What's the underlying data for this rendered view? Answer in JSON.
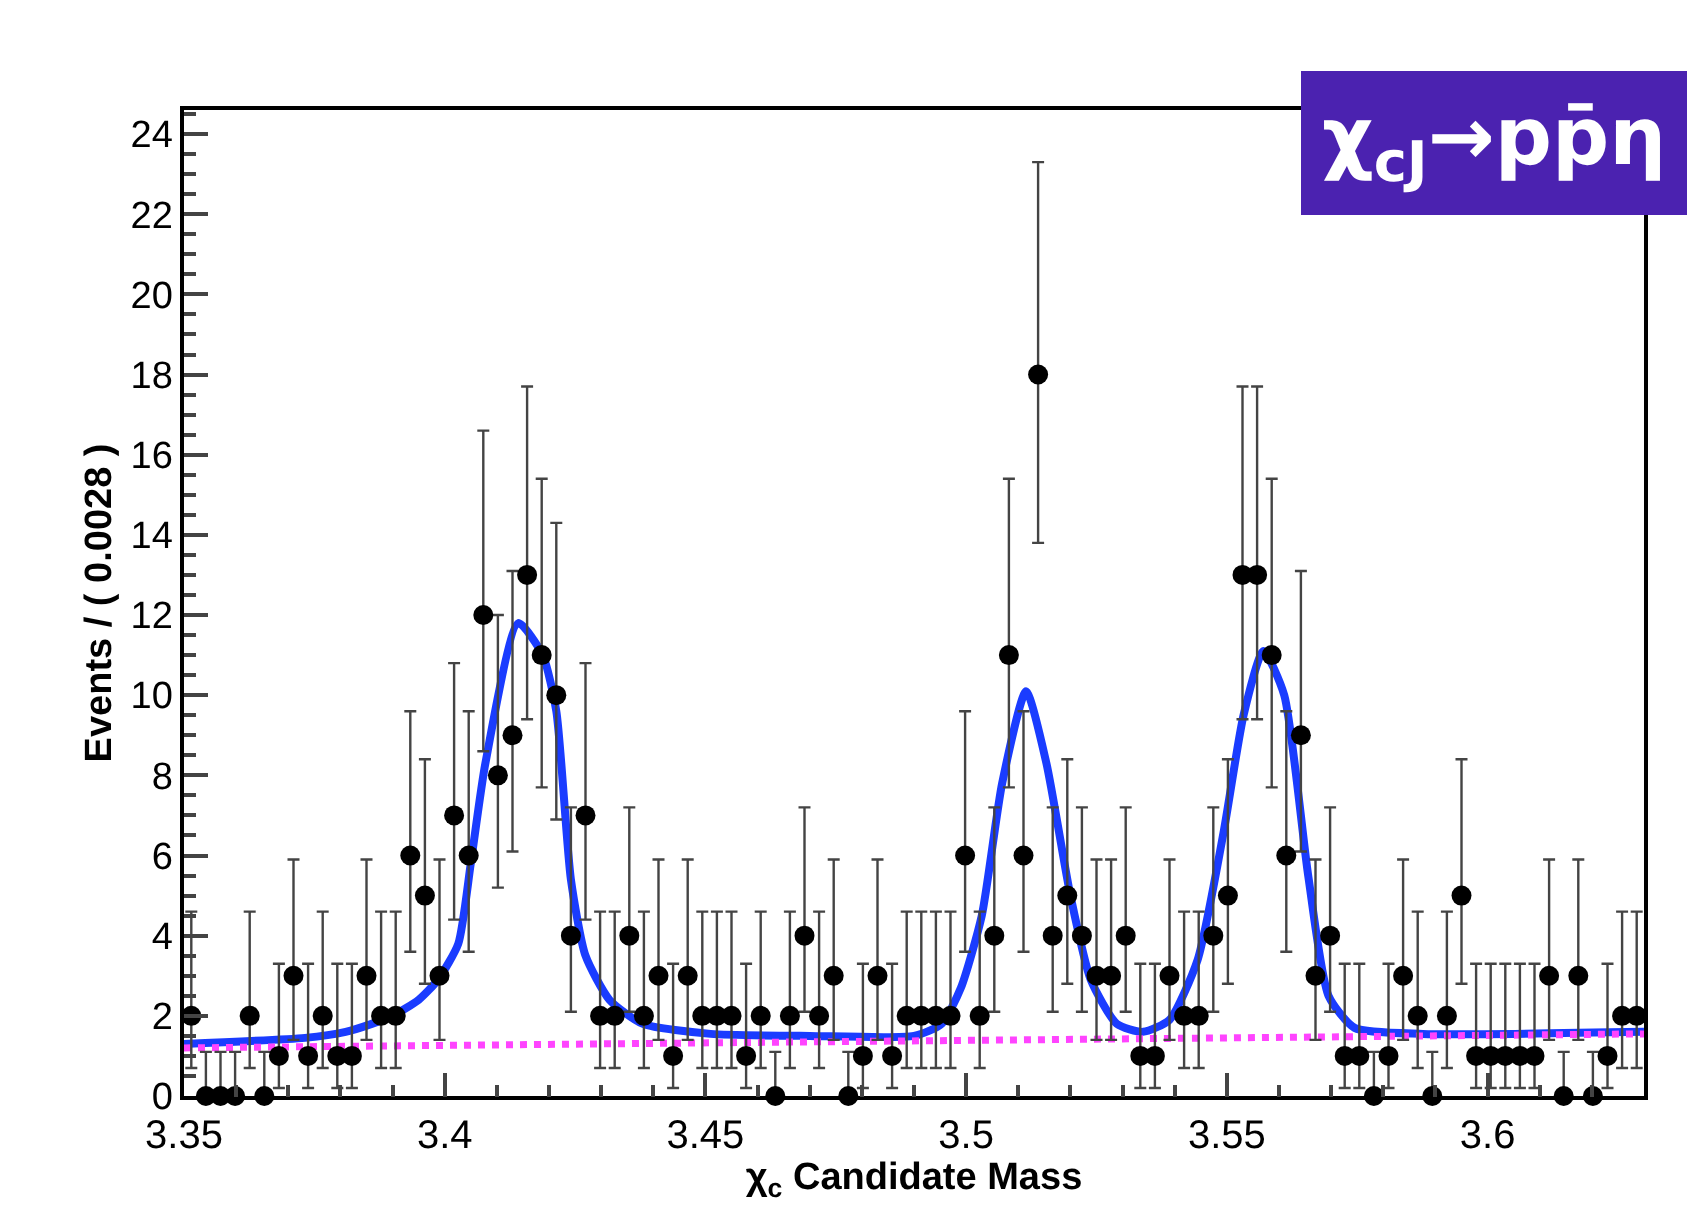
{
  "chart_data": {
    "type": "scatter",
    "xlabel": "χ$_{c}$ Candidate Mass",
    "ylabel": "Events / ( 0.0028 )",
    "annotations": [
      "χ$_{cJ}$→pp̄η"
    ],
    "xlim": [
      3.35,
      3.63
    ],
    "xticks": [
      3.35,
      3.4,
      3.45,
      3.5,
      3.55,
      3.6
    ],
    "ylim": [
      0,
      24.6
    ],
    "yticks": [
      0,
      2,
      4,
      6,
      8,
      10,
      12,
      14,
      16,
      18,
      20,
      22,
      24
    ],
    "series": [
      {
        "color": "#000000",
        "marker": "circle",
        "x": [
          3.3514,
          3.3542,
          3.357,
          3.3598,
          3.3626,
          3.3654,
          3.3682,
          3.371,
          3.3738,
          3.3766,
          3.3794,
          3.3822,
          3.385,
          3.3878,
          3.3906,
          3.3934,
          3.3962,
          3.399,
          3.4018,
          3.4046,
          3.4074,
          3.4102,
          3.413,
          3.4158,
          3.4186,
          3.4214,
          3.4242,
          3.427,
          3.4298,
          3.4326,
          3.4354,
          3.4382,
          3.441,
          3.4438,
          3.4466,
          3.4494,
          3.4522,
          3.455,
          3.4578,
          3.4606,
          3.4634,
          3.4662,
          3.469,
          3.4718,
          3.4746,
          3.4774,
          3.4802,
          3.483,
          3.4858,
          3.4886,
          3.4914,
          3.4942,
          3.497,
          3.4998,
          3.5026,
          3.5054,
          3.5082,
          3.511,
          3.5138,
          3.5166,
          3.5194,
          3.5222,
          3.525,
          3.5278,
          3.5306,
          3.5334,
          3.5362,
          3.539,
          3.5418,
          3.5446,
          3.5474,
          3.5502,
          3.553,
          3.5558,
          3.5586,
          3.5614,
          3.5642,
          3.567,
          3.5698,
          3.5726,
          3.5754,
          3.5782,
          3.581,
          3.5838,
          3.5866,
          3.5894,
          3.5922,
          3.595,
          3.5978,
          3.6006,
          3.6034,
          3.6062,
          3.609,
          3.6118,
          3.6146,
          3.6174,
          3.6202,
          3.623,
          3.6258,
          3.6286
        ],
        "values": [
          2,
          0,
          0,
          0,
          2,
          0,
          1,
          3,
          1,
          2,
          1,
          1,
          3,
          2,
          2,
          6,
          5,
          3,
          7,
          6,
          12,
          8,
          9,
          13,
          11,
          10,
          4,
          7,
          2,
          2,
          4,
          2,
          3,
          1,
          3,
          2,
          2,
          2,
          1,
          2,
          0,
          2,
          4,
          2,
          3,
          0,
          1,
          3,
          1,
          2,
          2,
          2,
          2,
          6,
          2,
          4,
          11,
          6,
          18,
          4,
          5,
          4,
          3,
          3,
          4,
          1,
          1,
          3,
          2,
          2,
          4,
          5,
          13,
          13,
          11,
          6,
          9,
          3,
          4,
          1,
          1,
          0,
          1,
          3,
          2,
          0,
          2,
          5,
          1,
          1,
          1,
          1,
          1,
          3,
          0,
          3,
          0,
          1,
          2,
          2
        ],
        "errors": [
          [
            0.7,
            4.6
          ],
          [
            0,
            1.1
          ],
          [
            0,
            1.1
          ],
          [
            0,
            1.1
          ],
          [
            0.7,
            4.6
          ],
          [
            0,
            1.1
          ],
          [
            0.2,
            3.3
          ],
          [
            1.4,
            5.9
          ],
          [
            0.2,
            3.3
          ],
          [
            0.7,
            4.6
          ],
          [
            0.2,
            3.3
          ],
          [
            0.2,
            3.3
          ],
          [
            1.4,
            5.9
          ],
          [
            0.7,
            4.6
          ],
          [
            0.7,
            4.6
          ],
          [
            3.6,
            9.6
          ],
          [
            2.8,
            8.4
          ],
          [
            1.4,
            5.9
          ],
          [
            4.4,
            10.8
          ],
          [
            3.6,
            9.6
          ],
          [
            8.6,
            16.6
          ],
          [
            5.2,
            12.0
          ],
          [
            6.1,
            13.1
          ],
          [
            9.4,
            17.7
          ],
          [
            7.7,
            15.4
          ],
          [
            6.9,
            14.3
          ],
          [
            2.1,
            7.2
          ],
          [
            4.4,
            10.8
          ],
          [
            0.7,
            4.6
          ],
          [
            0.7,
            4.6
          ],
          [
            2.1,
            7.2
          ],
          [
            0.7,
            4.6
          ],
          [
            1.4,
            5.9
          ],
          [
            0.2,
            3.3
          ],
          [
            1.4,
            5.9
          ],
          [
            0.7,
            4.6
          ],
          [
            0.7,
            4.6
          ],
          [
            0.7,
            4.6
          ],
          [
            0.2,
            3.3
          ],
          [
            0.7,
            4.6
          ],
          [
            0,
            1.1
          ],
          [
            0.7,
            4.6
          ],
          [
            2.1,
            7.2
          ],
          [
            0.7,
            4.6
          ],
          [
            1.4,
            5.9
          ],
          [
            0,
            1.1
          ],
          [
            0.2,
            3.3
          ],
          [
            1.4,
            5.9
          ],
          [
            0.2,
            3.3
          ],
          [
            0.7,
            4.6
          ],
          [
            0.7,
            4.6
          ],
          [
            0.7,
            4.6
          ],
          [
            0.7,
            4.6
          ],
          [
            3.6,
            9.6
          ],
          [
            0.7,
            4.6
          ],
          [
            2.1,
            7.2
          ],
          [
            7.7,
            15.4
          ],
          [
            3.6,
            9.6
          ],
          [
            13.8,
            23.3
          ],
          [
            2.1,
            7.2
          ],
          [
            2.8,
            8.4
          ],
          [
            2.1,
            7.2
          ],
          [
            1.4,
            5.9
          ],
          [
            1.4,
            5.9
          ],
          [
            2.1,
            7.2
          ],
          [
            0.2,
            3.3
          ],
          [
            0.2,
            3.3
          ],
          [
            1.4,
            5.9
          ],
          [
            0.7,
            4.6
          ],
          [
            0.7,
            4.6
          ],
          [
            2.1,
            7.2
          ],
          [
            2.8,
            8.4
          ],
          [
            9.4,
            17.7
          ],
          [
            9.4,
            17.7
          ],
          [
            7.7,
            15.4
          ],
          [
            3.6,
            9.6
          ],
          [
            6.1,
            13.1
          ],
          [
            1.4,
            5.9
          ],
          [
            2.1,
            7.2
          ],
          [
            0.2,
            3.3
          ],
          [
            0.2,
            3.3
          ],
          [
            0,
            1.1
          ],
          [
            0.2,
            3.3
          ],
          [
            1.4,
            5.9
          ],
          [
            0.7,
            4.6
          ],
          [
            0,
            1.1
          ],
          [
            0.7,
            4.6
          ],
          [
            2.8,
            8.4
          ],
          [
            0.2,
            3.3
          ],
          [
            0.2,
            3.3
          ],
          [
            0.2,
            3.3
          ],
          [
            0.2,
            3.3
          ],
          [
            0.2,
            3.3
          ],
          [
            1.4,
            5.9
          ],
          [
            0,
            1.1
          ],
          [
            1.4,
            5.9
          ],
          [
            0,
            1.1
          ],
          [
            0.2,
            3.3
          ],
          [
            0.7,
            4.6
          ],
          [
            0.7,
            4.6
          ]
        ]
      },
      {
        "type": "line",
        "color": "#1a3cff",
        "line_style": "solid",
        "x": [
          3.35,
          3.3732,
          3.381,
          3.386,
          3.39,
          3.395,
          3.3987,
          3.4026,
          3.405,
          3.4078,
          3.4141,
          3.4188,
          3.4214,
          3.4242,
          3.427,
          3.4316,
          3.438,
          3.451,
          3.47,
          3.49,
          3.4953,
          3.499,
          3.503,
          3.5069,
          3.5115,
          3.5154,
          3.52,
          3.5239,
          3.5289,
          3.5339,
          3.539,
          3.5444,
          3.5494,
          3.5532,
          3.557,
          3.561,
          3.5656,
          3.5695,
          3.5745,
          3.5876,
          3.63
        ],
        "values": [
          1.3,
          1.45,
          1.6,
          1.8,
          2.0,
          2.4,
          2.9,
          3.8,
          5.8,
          8.3,
          11.8,
          11.0,
          9.6,
          5.4,
          3.5,
          2.4,
          1.8,
          1.55,
          1.5,
          1.5,
          1.8,
          2.7,
          4.5,
          7.8,
          10.1,
          8.3,
          5.0,
          2.9,
          1.8,
          1.6,
          1.9,
          3.4,
          6.6,
          9.5,
          11.1,
          10.0,
          5.5,
          2.5,
          1.7,
          1.55,
          1.6
        ]
      },
      {
        "type": "line",
        "color": "#ff44ff",
        "line_style": "dotted",
        "x": [
          3.35,
          3.63
        ],
        "values": [
          1.2,
          1.55
        ]
      }
    ]
  }
}
